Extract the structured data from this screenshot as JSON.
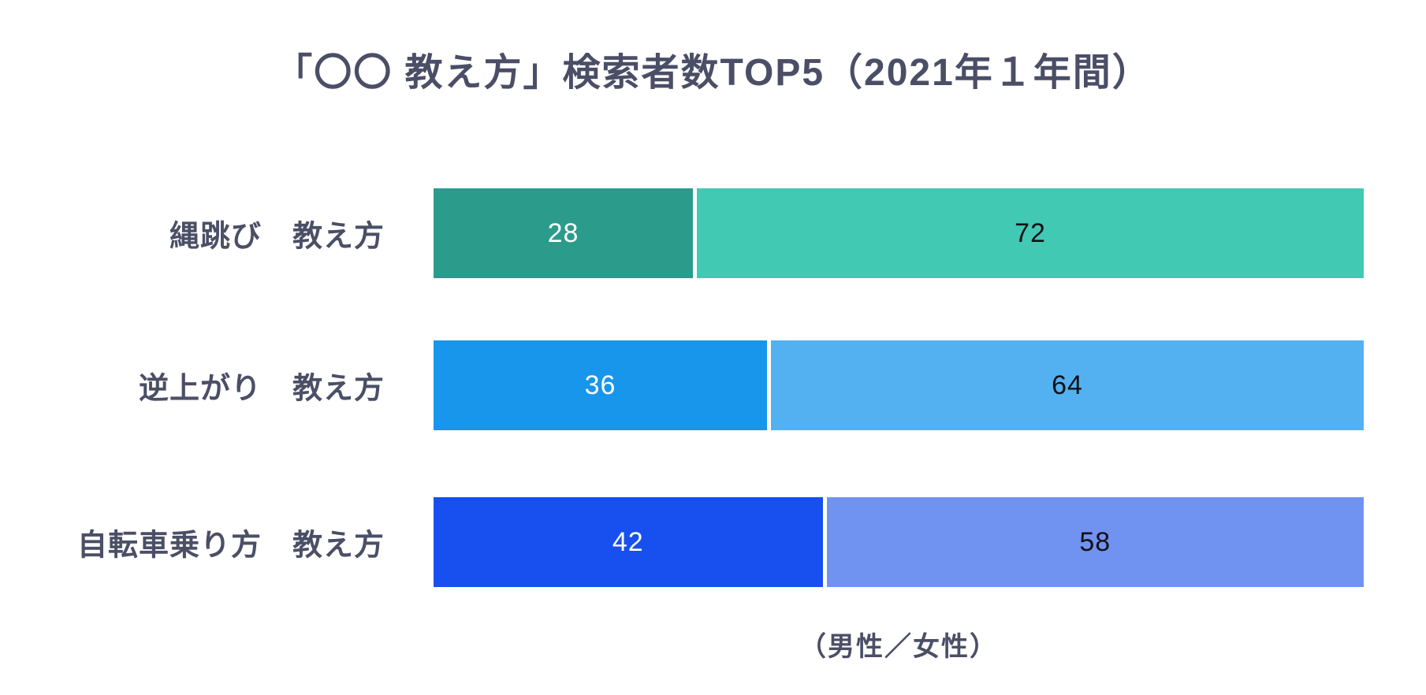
{
  "palette": {
    "background": "#ffffff",
    "title_text": "#4a4e66",
    "label_text": "#4b4f66",
    "divider": "#ffffff"
  },
  "chart_data": {
    "type": "bar",
    "orientation": "horizontal-stacked",
    "title": "「〇〇 教え方」検索者数TOP5（2021年１年間）",
    "note": "（男性／女性）",
    "categories": [
      "縄跳び　教え方",
      "逆上がり　教え方",
      "自転車乗り方　教え方"
    ],
    "series": [
      {
        "name": "男性",
        "values": [
          28,
          36,
          42
        ],
        "colors": [
          "#2b9b8c",
          "#1796eb",
          "#1750ee"
        ],
        "label_color": "#ffffff"
      },
      {
        "name": "女性",
        "values": [
          72,
          64,
          58
        ],
        "colors": [
          "#41c9b4",
          "#53b1f1",
          "#7092f1"
        ],
        "label_color": "#111115"
      }
    ],
    "xlim": [
      0,
      100
    ],
    "value_unit": "percent",
    "grid": "off",
    "axis_ticks": "none",
    "legend_position": "note-below-chart"
  }
}
